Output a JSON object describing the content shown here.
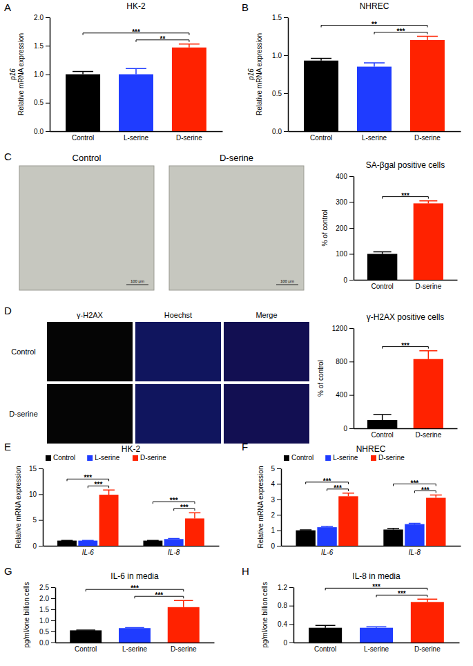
{
  "chart_data": [
    {
      "panel": "A",
      "type": "bar",
      "title": "HK-2",
      "ylabel": [
        "p16",
        "Relative mRNA expression"
      ],
      "categories": [
        "Control",
        "L-serine",
        "D-serine"
      ],
      "values": [
        1.0,
        1.0,
        1.47
      ],
      "errors": [
        0.05,
        0.1,
        0.06
      ],
      "colors": [
        "#000000",
        "#1f3cff",
        "#ff2200"
      ],
      "ylim": [
        0,
        2
      ],
      "yticks": [
        {
          "value": 0,
          "label": "0.0"
        },
        0.5,
        {
          "value": 1,
          "label": "1.0"
        },
        1.5,
        {
          "value": 2,
          "label": "2.0"
        }
      ],
      "annotations": [
        {
          "from": 1,
          "to": 2,
          "text": "**"
        },
        {
          "from": 0,
          "to": 2,
          "text": "***"
        }
      ]
    },
    {
      "panel": "B",
      "type": "bar",
      "title": "NHREC",
      "ylabel": [
        "p16",
        "Relative mRNA expression"
      ],
      "categories": [
        "Control",
        "L-serine",
        "D-serine"
      ],
      "values": [
        0.93,
        0.85,
        1.2
      ],
      "errors": [
        0.03,
        0.05,
        0.05
      ],
      "colors": [
        "#000000",
        "#1f3cff",
        "#ff2200"
      ],
      "ylim": [
        0,
        1.5
      ],
      "yticks": [
        {
          "value": 0,
          "label": "0.0"
        },
        0.5,
        {
          "value": 1,
          "label": "1.0"
        },
        1.5
      ],
      "annotations": [
        {
          "from": 1,
          "to": 2,
          "text": "***"
        },
        {
          "from": 0,
          "to": 2,
          "text": "**"
        }
      ]
    },
    {
      "panel": "C",
      "type": "bar",
      "title": "SA-βgal positive cells",
      "ylabel": "% of control",
      "categories": [
        "Control",
        "D-serine"
      ],
      "values": [
        100,
        295
      ],
      "errors": [
        8,
        10
      ],
      "colors": [
        "#000000",
        "#ff2200"
      ],
      "ylim": [
        0,
        400
      ],
      "yticks": [
        0,
        100,
        200,
        300,
        400
      ],
      "annotations": [
        {
          "from": 0,
          "to": 1,
          "text": "***"
        }
      ]
    },
    {
      "panel": "D",
      "type": "bar",
      "title": "γ-H2AX positive cells",
      "ylabel": "% of control",
      "categories": [
        "Control",
        "D-serine"
      ],
      "values": [
        100,
        830
      ],
      "errors": [
        65,
        100
      ],
      "colors": [
        "#000000",
        "#ff2200"
      ],
      "ylim": [
        0,
        1200
      ],
      "yticks": [
        0,
        400,
        800,
        1200
      ],
      "annotations": [
        {
          "from": 0,
          "to": 1,
          "text": "***"
        }
      ]
    },
    {
      "panel": "E",
      "type": "grouped_bar",
      "title": "HK-2",
      "ylabel": "Relative mRNA expression",
      "categories": [
        "IL-6",
        "IL-8"
      ],
      "legend": "top-left",
      "series": [
        {
          "name": "Control",
          "color": "#000000",
          "values": [
            1.0,
            1.0
          ],
          "errors": [
            0.05,
            0.05
          ]
        },
        {
          "name": "L-serine",
          "color": "#1f3cff",
          "values": [
            1.0,
            1.3
          ],
          "errors": [
            0.05,
            0.1
          ]
        },
        {
          "name": "D-serine",
          "color": "#ff2200",
          "values": [
            9.9,
            5.3
          ],
          "errors": [
            0.9,
            1.1
          ]
        }
      ],
      "ylim": [
        0,
        15
      ],
      "yticks": [
        0,
        5,
        10,
        15
      ],
      "annotations": [
        {
          "category": 0,
          "from": 1,
          "to": 2,
          "text": "***"
        },
        {
          "category": 0,
          "from": 0,
          "to": 2,
          "text": "***"
        },
        {
          "category": 1,
          "from": 1,
          "to": 2,
          "text": "***"
        },
        {
          "category": 1,
          "from": 0,
          "to": 2,
          "text": "***"
        }
      ]
    },
    {
      "panel": "F",
      "type": "grouped_bar",
      "title": "NHREC",
      "ylabel": "Relative mRNA expression",
      "categories": [
        "IL-6",
        "IL-8"
      ],
      "legend": "top-left",
      "series": [
        {
          "name": "Control",
          "color": "#000000",
          "values": [
            1.0,
            1.05
          ],
          "errors": [
            0.03,
            0.08
          ]
        },
        {
          "name": "L-serine",
          "color": "#1f3cff",
          "values": [
            1.2,
            1.4
          ],
          "errors": [
            0.05,
            0.05
          ]
        },
        {
          "name": "D-serine",
          "color": "#ff2200",
          "values": [
            3.2,
            3.1
          ],
          "errors": [
            0.2,
            0.18
          ]
        }
      ],
      "ylim": [
        0,
        5
      ],
      "yticks": [
        0,
        1,
        2,
        3,
        4,
        5
      ],
      "annotations": [
        {
          "category": 0,
          "from": 1,
          "to": 2,
          "text": "***"
        },
        {
          "category": 0,
          "from": 0,
          "to": 2,
          "text": "***"
        },
        {
          "category": 1,
          "from": 1,
          "to": 2,
          "text": "***"
        },
        {
          "category": 1,
          "from": 0,
          "to": 2,
          "text": "***"
        }
      ]
    },
    {
      "panel": "G",
      "type": "bar",
      "title": "IL-6 in media",
      "ylabel": "pg/ml/one billion cells",
      "categories": [
        "Control",
        "L-serine",
        "D-serine"
      ],
      "values": [
        0.55,
        0.65,
        1.6
      ],
      "errors": [
        0.01,
        0.02,
        0.3
      ],
      "colors": [
        "#000000",
        "#1f3cff",
        "#ff2200"
      ],
      "ylim": [
        0,
        2.5
      ],
      "yticks": [
        {
          "value": 0,
          "label": "0.0"
        },
        0.5,
        {
          "value": 1,
          "label": "1.0"
        },
        1.5,
        {
          "value": 2,
          "label": "2.0"
        },
        2.5
      ],
      "annotations": [
        {
          "from": 1,
          "to": 2,
          "text": "***"
        },
        {
          "from": 0,
          "to": 2,
          "text": "***"
        }
      ]
    },
    {
      "panel": "H",
      "type": "bar",
      "title": "IL-8 in media",
      "ylabel": "pg/ml/one billion cells",
      "categories": [
        "Control",
        "L-serine",
        "D-serine"
      ],
      "values": [
        0.32,
        0.32,
        0.88
      ],
      "errors": [
        0.05,
        0.02,
        0.06
      ],
      "colors": [
        "#000000",
        "#1f3cff",
        "#ff2200"
      ],
      "ylim": [
        0,
        1.2
      ],
      "yticks": [
        0,
        0.4,
        0.8,
        1.2
      ],
      "annotations": [
        {
          "from": 1,
          "to": 2,
          "text": "***"
        },
        {
          "from": 0,
          "to": 2,
          "text": "***"
        }
      ]
    }
  ],
  "image_panels": {
    "C": {
      "columns": [
        "Control",
        "D-serine"
      ],
      "scale_bar": "100 μm"
    },
    "D": {
      "columns": [
        "γ-H2AX",
        "Hoechst",
        "Merge"
      ],
      "rows": [
        "Control",
        "D-serine"
      ]
    }
  }
}
